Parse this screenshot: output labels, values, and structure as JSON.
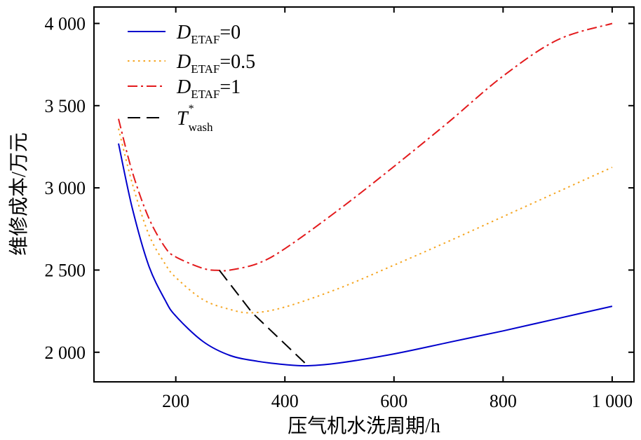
{
  "chart_data": {
    "type": "line",
    "xlabel": "压气机水洗周期/h",
    "ylabel": "维修成本/万元",
    "xlim": [
      50,
      1040
    ],
    "ylim": [
      1820,
      4100
    ],
    "xticks": [
      200,
      400,
      600,
      800,
      1000
    ],
    "xtick_labels": [
      "200",
      "400",
      "600",
      "800",
      "1 000"
    ],
    "yticks": [
      2000,
      2500,
      3000,
      3500,
      4000
    ],
    "ytick_labels": [
      "2 000",
      "2 500",
      "3 000",
      "3 500",
      "4 000"
    ],
    "grid": false,
    "legend_position": "top-left",
    "series": [
      {
        "name": "D_ETAF=0",
        "legend_main": "D",
        "legend_sub": "ETAF",
        "legend_suffix": "=0",
        "style": "solid",
        "color": "#0000CC",
        "x": [
          95,
          120,
          150,
          180,
          200,
          250,
          300,
          350,
          400,
          442,
          500,
          600,
          700,
          800,
          900,
          1000
        ],
        "y": [
          3270,
          2880,
          2530,
          2320,
          2220,
          2065,
          1980,
          1945,
          1925,
          1918,
          1935,
          1990,
          2060,
          2130,
          2205,
          2280
        ]
      },
      {
        "name": "D_ETAF=0.5",
        "legend_main": "D",
        "legend_sub": "ETAF",
        "legend_suffix": "=0.5",
        "style": "dotted",
        "color": "#F5A623",
        "x": [
          95,
          120,
          150,
          180,
          200,
          250,
          300,
          340,
          400,
          500,
          600,
          700,
          800,
          900,
          1000
        ],
        "y": [
          3360,
          3030,
          2720,
          2540,
          2455,
          2320,
          2260,
          2240,
          2275,
          2390,
          2530,
          2675,
          2825,
          2975,
          3125
        ]
      },
      {
        "name": "D_ETAF=1",
        "legend_main": "D",
        "legend_sub": "ETAF",
        "legend_suffix": "=1",
        "style": "dashdot",
        "color": "#E31A1C",
        "x": [
          95,
          120,
          150,
          180,
          200,
          250,
          280,
          300,
          350,
          400,
          500,
          600,
          700,
          800,
          900,
          1000
        ],
        "y": [
          3420,
          3100,
          2820,
          2640,
          2580,
          2510,
          2498,
          2500,
          2540,
          2630,
          2870,
          3130,
          3400,
          3680,
          3900,
          4000
        ]
      },
      {
        "name": "T*_wash",
        "legend_main": "T",
        "legend_sup": "*",
        "legend_sub": "wash",
        "legend_suffix": "",
        "style": "dashed",
        "color": "#000000",
        "x": [
          280,
          340,
          442
        ],
        "y": [
          2498,
          2240,
          1918
        ]
      }
    ]
  }
}
